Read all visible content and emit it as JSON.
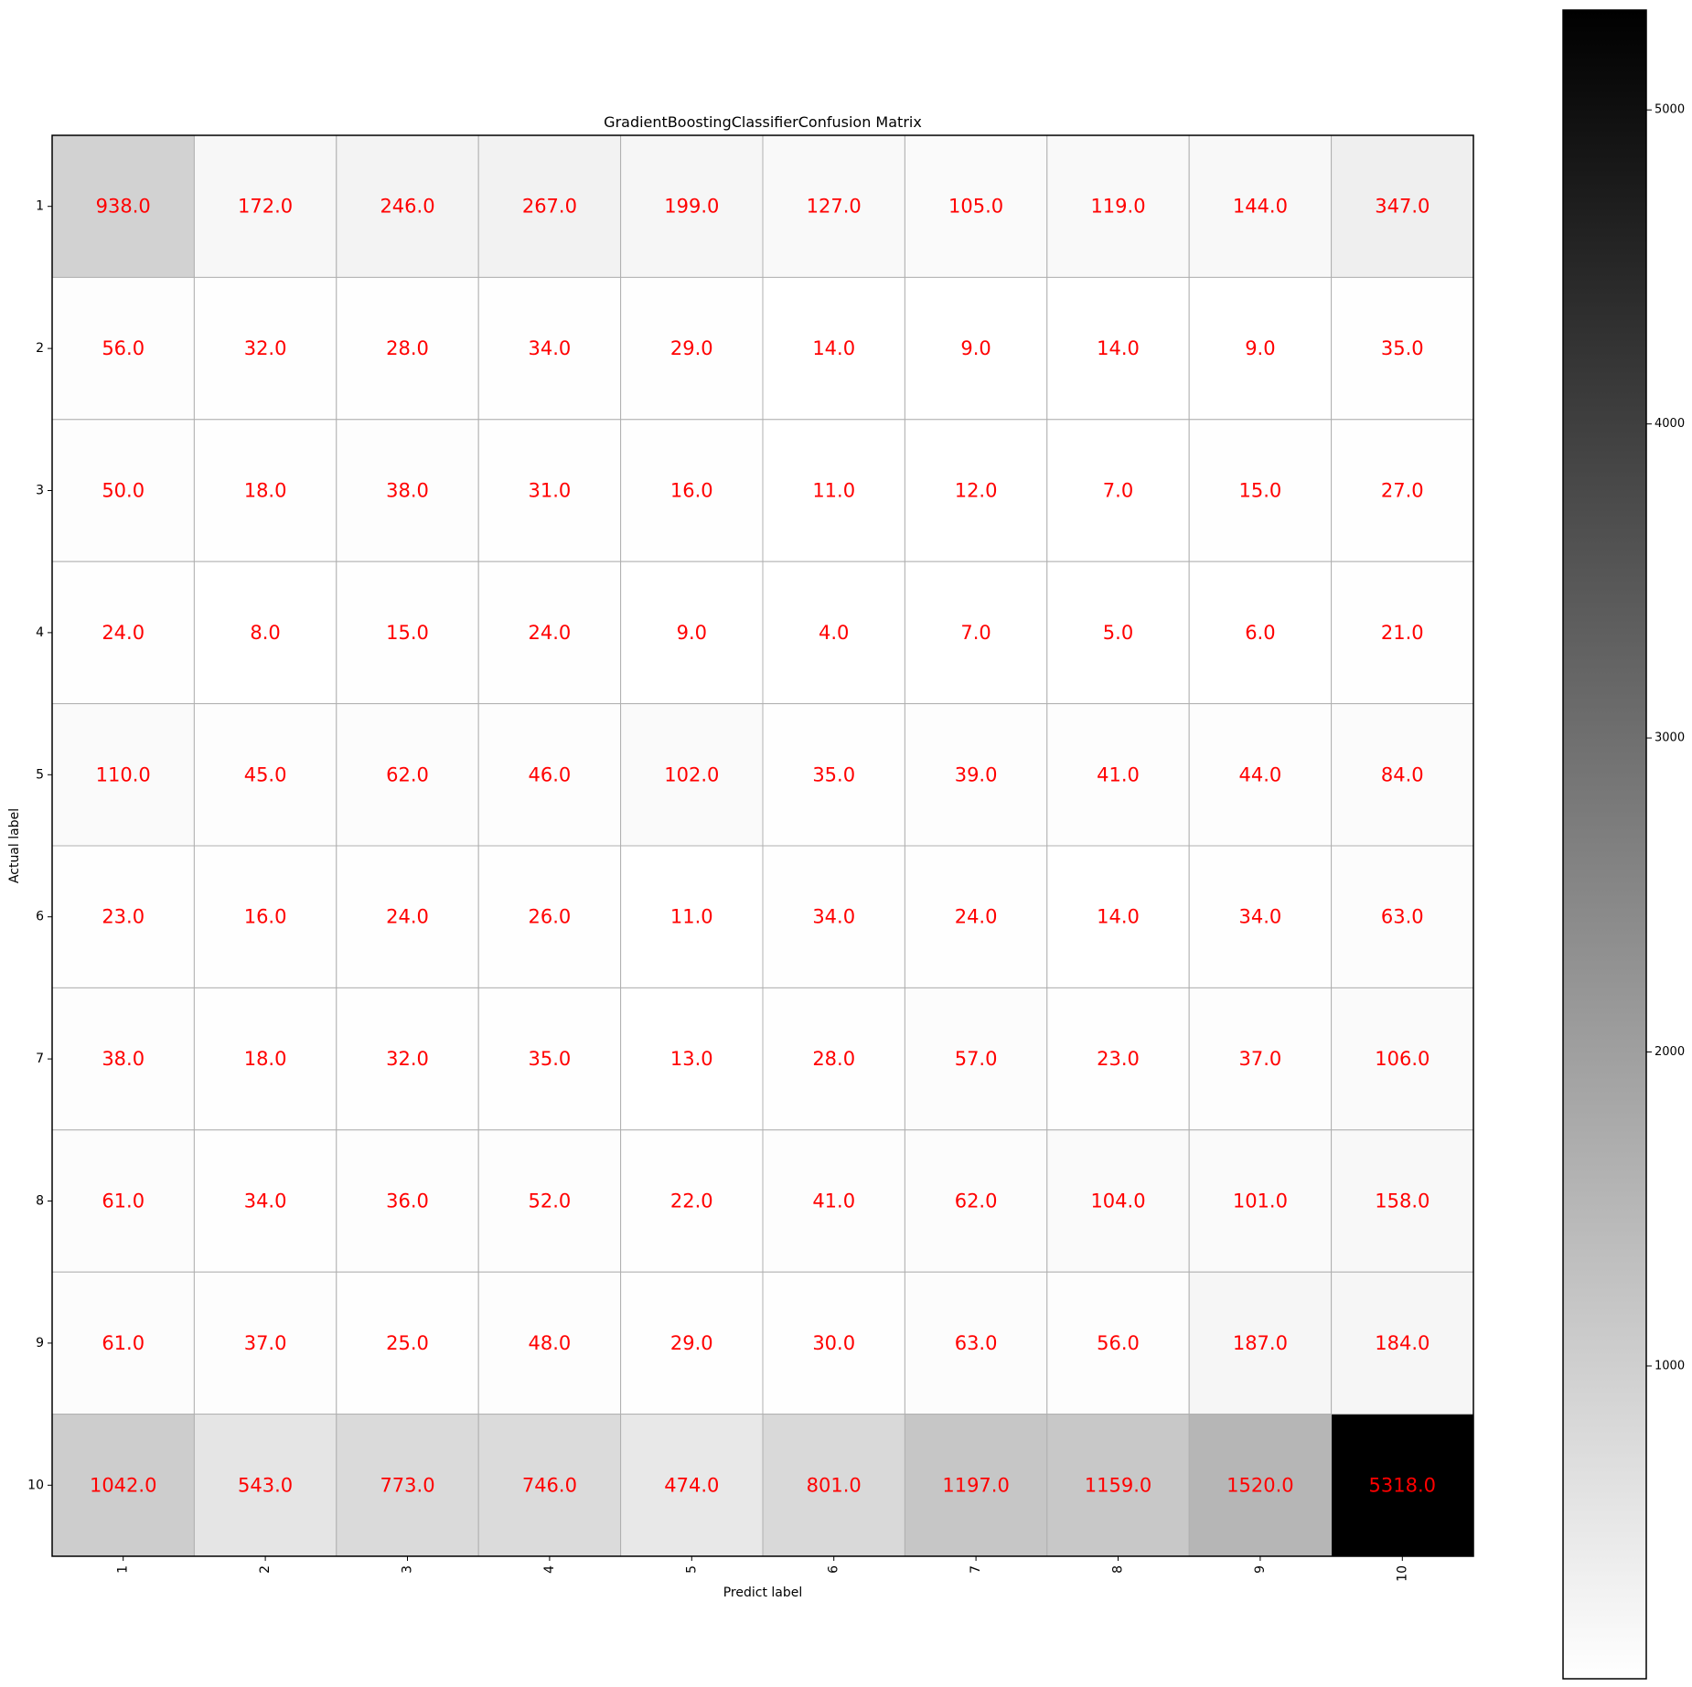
{
  "chart_data": {
    "type": "heatmap",
    "title": "GradientBoostingClassifierConfusion Matrix",
    "xlabel": "Predict label",
    "ylabel": "Actual label",
    "x_categories": [
      "1",
      "2",
      "3",
      "4",
      "5",
      "6",
      "7",
      "8",
      "9",
      "10"
    ],
    "y_categories": [
      "1",
      "2",
      "3",
      "4",
      "5",
      "6",
      "7",
      "8",
      "9",
      "10"
    ],
    "values": [
      [
        938.0,
        172.0,
        246.0,
        267.0,
        199.0,
        127.0,
        105.0,
        119.0,
        144.0,
        347.0
      ],
      [
        56.0,
        32.0,
        28.0,
        34.0,
        29.0,
        14.0,
        9.0,
        14.0,
        9.0,
        35.0
      ],
      [
        50.0,
        18.0,
        38.0,
        31.0,
        16.0,
        11.0,
        12.0,
        7.0,
        15.0,
        27.0
      ],
      [
        24.0,
        8.0,
        15.0,
        24.0,
        9.0,
        4.0,
        7.0,
        5.0,
        6.0,
        21.0
      ],
      [
        110.0,
        45.0,
        62.0,
        46.0,
        102.0,
        35.0,
        39.0,
        41.0,
        44.0,
        84.0
      ],
      [
        23.0,
        16.0,
        24.0,
        26.0,
        11.0,
        34.0,
        24.0,
        14.0,
        34.0,
        63.0
      ],
      [
        38.0,
        18.0,
        32.0,
        35.0,
        13.0,
        28.0,
        57.0,
        23.0,
        37.0,
        106.0
      ],
      [
        61.0,
        34.0,
        36.0,
        52.0,
        22.0,
        41.0,
        62.0,
        104.0,
        101.0,
        158.0
      ],
      [
        61.0,
        37.0,
        25.0,
        48.0,
        29.0,
        30.0,
        63.0,
        56.0,
        187.0,
        184.0
      ],
      [
        1042.0,
        543.0,
        773.0,
        746.0,
        474.0,
        801.0,
        1197.0,
        1159.0,
        1520.0,
        5318.0
      ]
    ],
    "colormap": "Greys",
    "value_label_color": "#ff0000",
    "grid": true,
    "colorbar": {
      "min": 4.0,
      "max": 5318.0,
      "ticks": [
        1000,
        2000,
        3000,
        4000,
        5000
      ],
      "tick_labels": [
        "1000",
        "2000",
        "3000",
        "4000",
        "5000"
      ]
    }
  }
}
